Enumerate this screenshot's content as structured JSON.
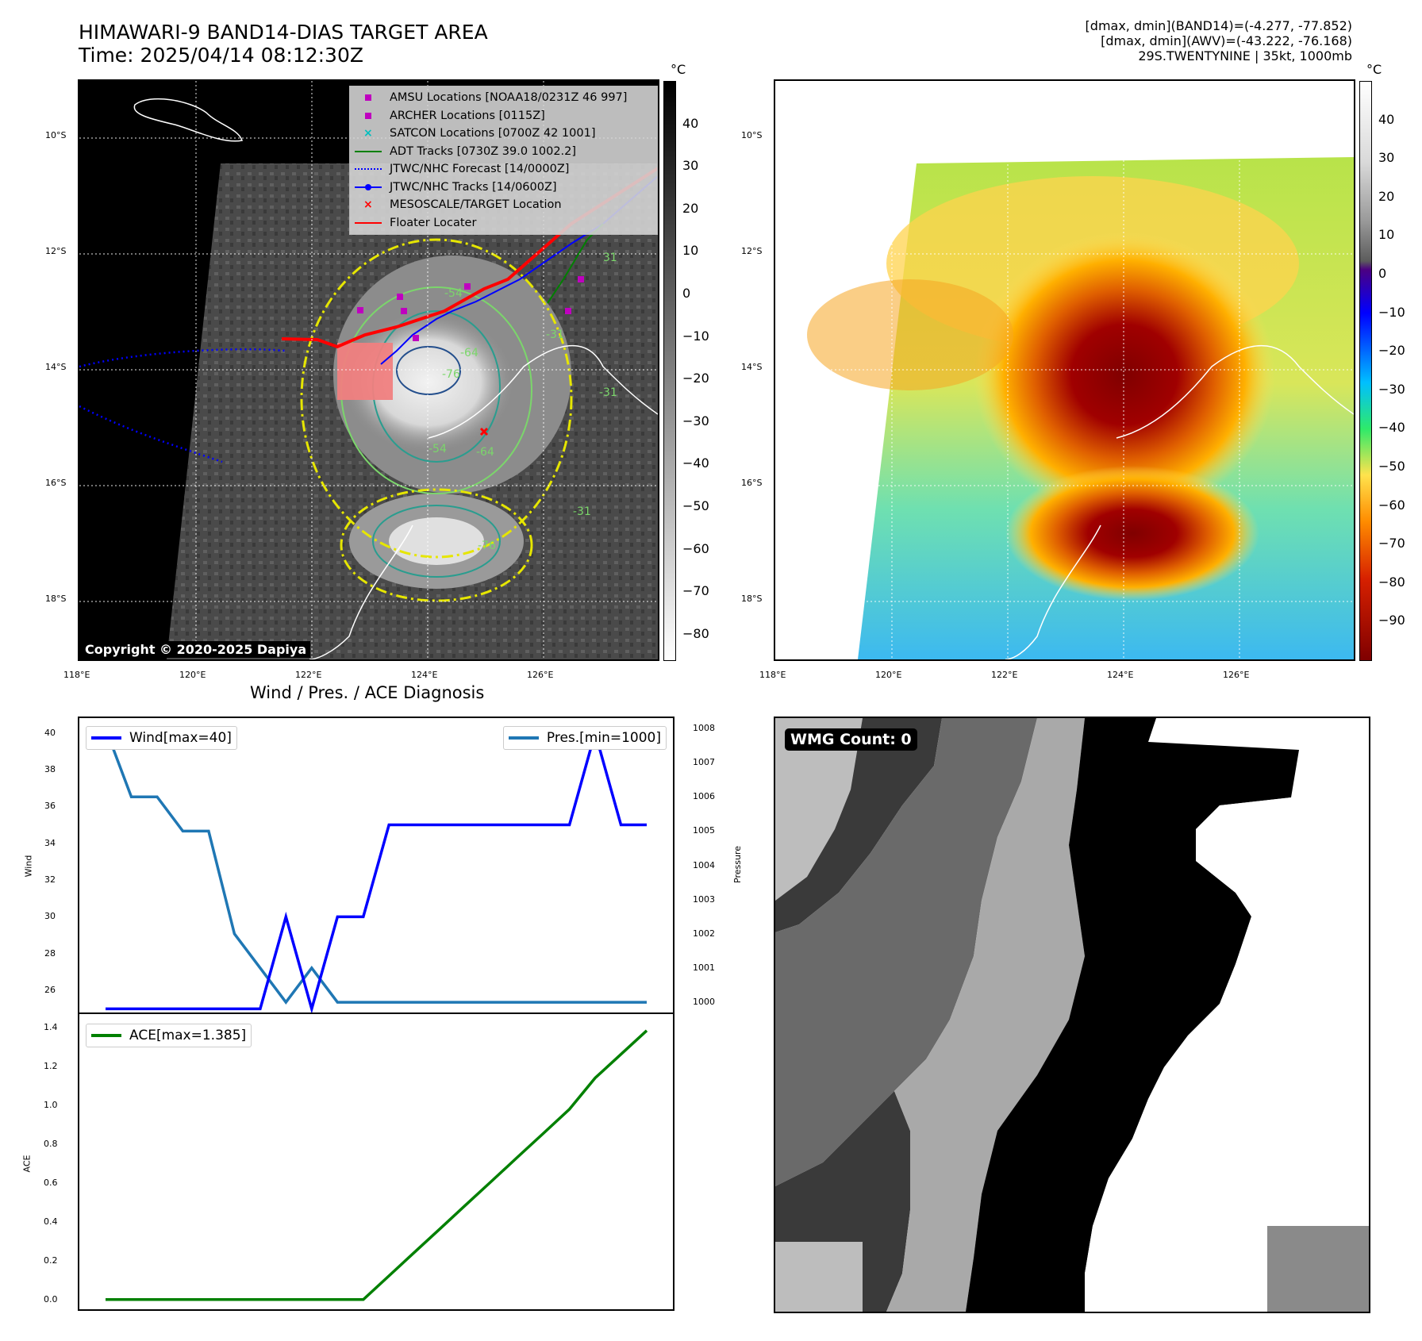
{
  "header": {
    "title_line1": "HIMAWARI-9 BAND14-DIAS TARGET AREA",
    "title_line2": "Time: 2025/04/14 08:12:30Z",
    "info_line1": "[dmax, dmin](BAND14)=(-4.277, -77.852)",
    "info_line2": "[dmax, dmin](AWV)=(-43.222, -76.168)",
    "info_line3": "29S.TWENTYNINE | 35kt, 1000mb"
  },
  "map": {
    "lat_labels": [
      "10°S",
      "12°S",
      "14°S",
      "16°S",
      "18°S"
    ],
    "lon_labels": [
      "118°E",
      "120°E",
      "122°E",
      "124°E",
      "126°E"
    ],
    "copyright": "Copyright © 2020-2025 Dapiya",
    "legend": [
      {
        "label": "AMSU Locations [NOAA18/0231Z 46 997]",
        "icon": "square-marker",
        "color": "#bf00bf"
      },
      {
        "label": "ARCHER Locations [0115Z]",
        "icon": "square-marker",
        "color": "#bf00bf"
      },
      {
        "label": "SATCON Locations [0700Z 42 1001]",
        "icon": "x-marker",
        "color": "#00bfbf"
      },
      {
        "label": "ADT Tracks [0730Z 39.0 1002.2]",
        "icon": "solid-line",
        "color": "#008000"
      },
      {
        "label": "JTWC/NHC Forecast [14/0000Z]",
        "icon": "dotted-line",
        "color": "#0000ff"
      },
      {
        "label": "JTWC/NHC Tracks [14/0600Z]",
        "icon": "line-dot",
        "color": "#0000ff"
      },
      {
        "label": "MESOSCALE/TARGET Location",
        "icon": "x-marker",
        "color": "#ff0000"
      },
      {
        "label": "Floater Locater",
        "icon": "solid-line",
        "color": "#ff0000"
      }
    ],
    "contour_labels": [
      "-54",
      "-64",
      "-76",
      "-31",
      "-31",
      "-76",
      "-54",
      "-64",
      "-31",
      "31"
    ]
  },
  "colorbar_gray": {
    "unit": "°C",
    "ticks": [
      "40",
      "30",
      "20",
      "10",
      "0",
      "−10",
      "−20",
      "−30",
      "−40",
      "−50",
      "−60",
      "−70",
      "−80"
    ],
    "tick_values": [
      40,
      30,
      20,
      10,
      0,
      -10,
      -20,
      -30,
      -40,
      -50,
      -60,
      -70,
      -80
    ],
    "range": [
      -86,
      50
    ]
  },
  "colorbar_color": {
    "unit": "°C",
    "ticks": [
      "40",
      "30",
      "20",
      "10",
      "0",
      "−10",
      "−20",
      "−30",
      "−40",
      "−50",
      "−60",
      "−70",
      "−80",
      "−90"
    ],
    "tick_values": [
      40,
      30,
      20,
      10,
      0,
      -10,
      -20,
      -30,
      -40,
      -50,
      -60,
      -70,
      -80,
      -90
    ],
    "range": [
      -100,
      50
    ]
  },
  "chart_data": [
    {
      "type": "line",
      "title": "Wind / Pres. / ACE Diagnosis",
      "ylabel": "Wind",
      "y2label": "Pressure",
      "ylim": [
        24.8,
        40.8
      ],
      "y2lim": [
        999.7,
        1008.3
      ],
      "yticks": [
        "40",
        "38",
        "36",
        "34",
        "32",
        "30",
        "28",
        "26"
      ],
      "ytick_values": [
        40,
        38,
        36,
        34,
        32,
        30,
        28,
        26
      ],
      "y2ticks": [
        "1008",
        "1007",
        "1006",
        "1005",
        "1004",
        "1003",
        "1002",
        "1001",
        "1000"
      ],
      "y2tick_values": [
        1008,
        1007,
        1006,
        1005,
        1004,
        1003,
        1002,
        1001,
        1000
      ],
      "series": [
        {
          "name": "Wind[max=40]",
          "axis": "left",
          "color": "#0000ff",
          "values": [
            25,
            25,
            25,
            25,
            25,
            25,
            25,
            30,
            25,
            30,
            30,
            35,
            35,
            35,
            35,
            35,
            35,
            35,
            35,
            40,
            35,
            35
          ]
        },
        {
          "name": "Pres.[min=1000]",
          "axis": "right",
          "color": "#1f77b4",
          "values": [
            1008,
            1006,
            1006,
            1005,
            1005,
            1002,
            1001,
            1000,
            1001,
            1000,
            1000,
            1000,
            1000,
            1000,
            1000,
            1000,
            1000,
            1000,
            1000,
            1000,
            1000,
            1000
          ]
        }
      ]
    },
    {
      "type": "line",
      "ylabel": "ACE",
      "ylim": [
        -0.05,
        1.47
      ],
      "yticks": [
        "1.4",
        "1.2",
        "1.0",
        "0.8",
        "0.6",
        "0.4",
        "0.2",
        "0.0"
      ],
      "ytick_values": [
        1.4,
        1.2,
        1.0,
        0.8,
        0.6,
        0.4,
        0.2,
        0.0
      ],
      "series": [
        {
          "name": "ACE[max=1.385]",
          "color": "#008000",
          "values": [
            0,
            0,
            0,
            0,
            0,
            0,
            0,
            0,
            0,
            0,
            0,
            0.122,
            0.245,
            0.367,
            0.49,
            0.612,
            0.735,
            0.857,
            0.98,
            1.141,
            1.263,
            1.385
          ]
        }
      ]
    }
  ],
  "wmg": {
    "badge": "WMG Count: 0"
  }
}
